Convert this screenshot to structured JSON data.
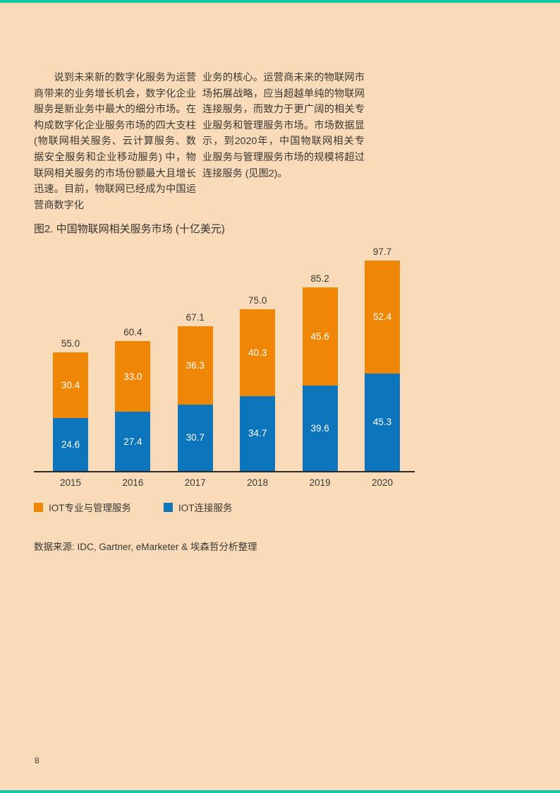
{
  "page": {
    "page_number": "8",
    "background_color": "#f9dbba",
    "accent_color": "#12c7a3",
    "text_color": "#3a3833"
  },
  "body": {
    "left_column": "说到未来新的数字化服务为运营商带来的业务增长机会，数字化企业服务是新业务中最大的细分市场。在构成数字化企业服务市场的四大支柱 (物联网相关服务、云计算服务、数据安全服务和企业移动服务) 中，物联网相关服务的市场份额最大且增长迅速。目前，物联网已经成为中国运营商数字化",
    "right_column": "业务的核心。运营商未来的物联网市场拓展战略，应当超越单纯的物联网连接服务，而致力于更广阔的相关专业服务和管理服务市场。市场数据显示，到2020年，中国物联网相关专业服务与管理服务市场的规模将超过连接服务 (见图2)。"
  },
  "chart": {
    "source": "数据来源: IDC, Gartner, eMarketer & 埃森哲分析整理"
  },
  "chart_data": {
    "type": "bar",
    "stacked": true,
    "title": "图2. 中国物联网相关服务市场 (十亿美元)",
    "categories": [
      "2015",
      "2016",
      "2017",
      "2018",
      "2019",
      "2020"
    ],
    "series": [
      {
        "name": "IOT连接服务",
        "color": "#0d75bb",
        "values": [
          24.6,
          27.4,
          30.7,
          34.7,
          39.6,
          45.3
        ]
      },
      {
        "name": "IOT专业与管理服务",
        "color": "#ef8606",
        "values": [
          30.4,
          33.0,
          36.3,
          40.3,
          45.6,
          52.4
        ]
      }
    ],
    "totals": [
      55.0,
      60.4,
      67.1,
      75.0,
      85.2,
      97.7
    ],
    "value_labels": "shown-inside-segments-and-totals-above-bars",
    "label_color_inside": "#ffffff",
    "label_color_totals": "#3a3833",
    "axis_color": "#2d2b27",
    "grid": false,
    "legend_position": "bottom-left",
    "ylim": [
      0,
      100
    ]
  }
}
